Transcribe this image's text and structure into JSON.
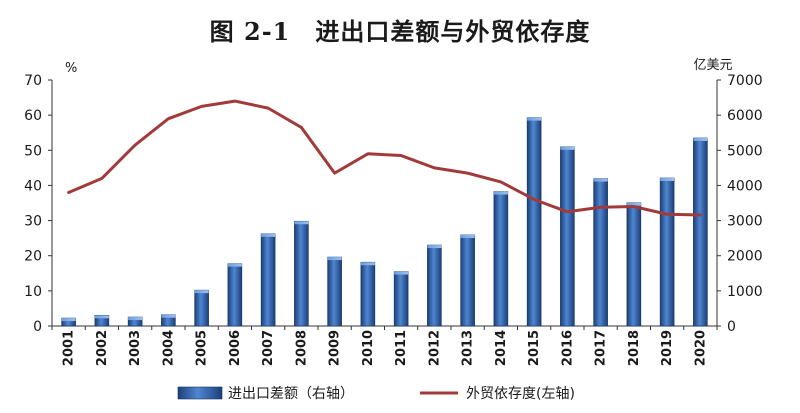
{
  "chart_data": {
    "type": "bar",
    "title": "图 2-1　进出口差额与外贸依存度",
    "categories": [
      "2001",
      "2002",
      "2003",
      "2004",
      "2005",
      "2006",
      "2007",
      "2008",
      "2009",
      "2010",
      "2011",
      "2012",
      "2013",
      "2014",
      "2015",
      "2016",
      "2017",
      "2018",
      "2019",
      "2020"
    ],
    "left_axis": {
      "unit": "%",
      "ylim": [
        0,
        70
      ],
      "ticks": [
        0,
        10,
        20,
        30,
        40,
        50,
        60,
        70
      ]
    },
    "right_axis": {
      "unit": "亿美元",
      "ylim": [
        0,
        7000
      ],
      "ticks": [
        0,
        1000,
        2000,
        3000,
        4000,
        5000,
        6000,
        7000
      ]
    },
    "series": [
      {
        "name": "进出口差额（右轴）",
        "type": "bar",
        "axis": "right",
        "color": "#2e5fa8",
        "values": [
          225,
          304,
          255,
          321,
          1020,
          1775,
          2622,
          2981,
          1961,
          1815,
          1549,
          2303,
          2590,
          3825,
          5930,
          5097,
          4196,
          3509,
          4211,
          5350
        ]
      },
      {
        "name": "外贸依存度(左轴)",
        "type": "line",
        "axis": "left",
        "color": "#a33a3a",
        "values": [
          38.0,
          42.0,
          51.5,
          59.0,
          62.5,
          64.0,
          62.0,
          56.5,
          43.5,
          49.0,
          48.5,
          45.0,
          43.5,
          41.0,
          36.0,
          32.5,
          33.8,
          34.0,
          31.8,
          31.6
        ]
      }
    ],
    "grid": false,
    "legend_position": "bottom"
  }
}
